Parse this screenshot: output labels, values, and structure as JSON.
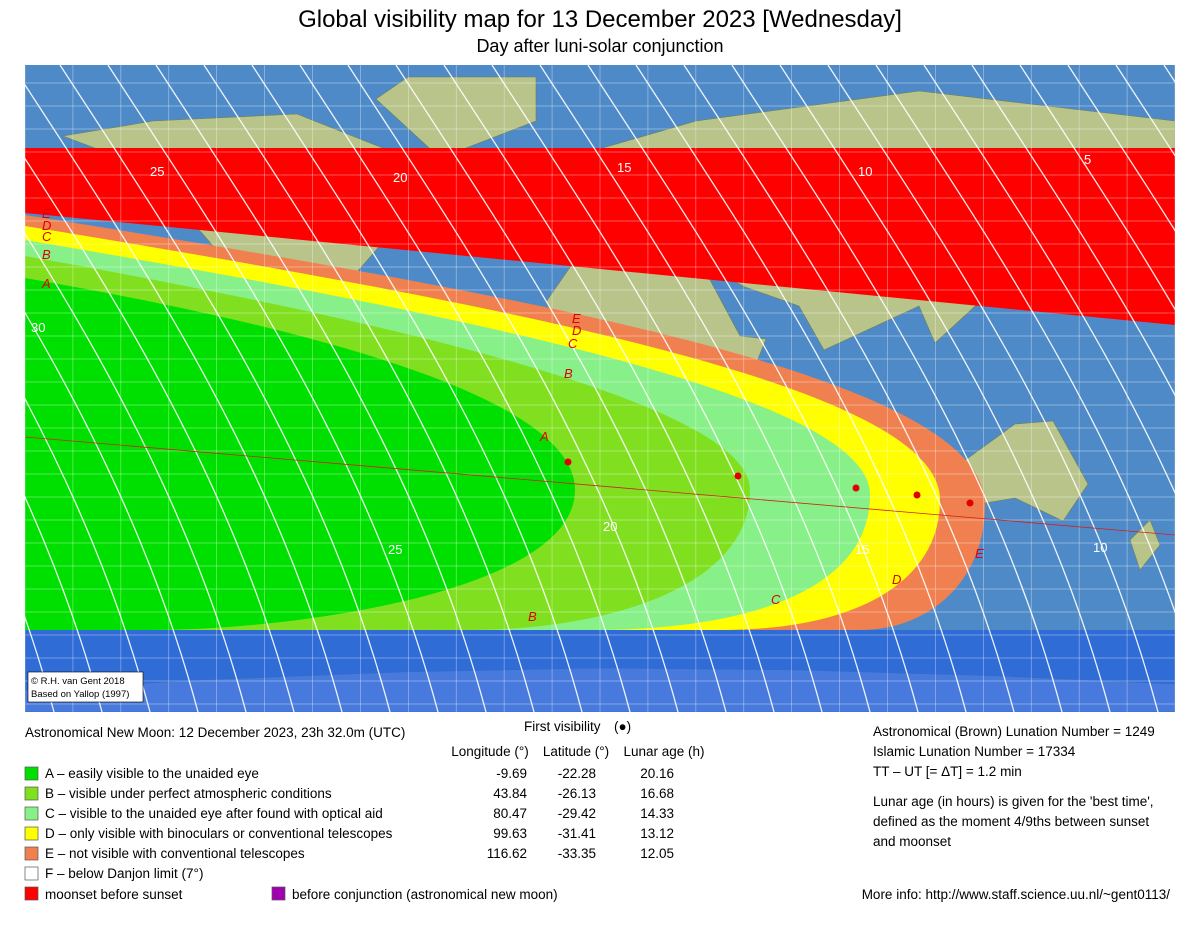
{
  "header": {
    "title": "Global visibility map for 13 December 2023 [Wednesday]",
    "subtitle": "Day after luni-solar conjunction"
  },
  "map": {
    "credit": [
      "© R.H. van Gent 2018",
      "Based on Yallop (1997)"
    ],
    "zone_labels": {
      "left": [
        "E",
        "D",
        "C",
        "B",
        "A"
      ],
      "middle": [
        "E",
        "D",
        "C",
        "B",
        "A"
      ],
      "bottom": [
        "B",
        "C",
        "D",
        "E"
      ]
    },
    "contour_labels": {
      "top": [
        25,
        20,
        15,
        10,
        5
      ],
      "bottom": [
        30,
        25,
        20,
        15,
        10
      ]
    }
  },
  "legend": {
    "new_moon": "Astronomical New Moon: 12 December 2023, 23h 32.0m (UTC)",
    "first_visibility": "First visibility",
    "first_visibility_marker": "(●)",
    "columns": [
      "Longitude (°)",
      "Latitude (°)",
      "Lunar age (h)"
    ],
    "rows": [
      {
        "key": "A – easily visible to the unaided eye",
        "color": "#00e000",
        "cells": [
          -9.69,
          -22.28,
          20.16
        ]
      },
      {
        "key": "B – visible under perfect atmospheric conditions",
        "color": "#80e020",
        "cells": [
          43.84,
          -26.13,
          16.68
        ]
      },
      {
        "key": "C – visible to the unaided eye after found with optical aid",
        "color": "#88f088",
        "cells": [
          80.47,
          -29.42,
          14.33
        ]
      },
      {
        "key": "D – only visible with binoculars or conventional telescopes",
        "color": "#ffff00",
        "cells": [
          99.63,
          -31.41,
          13.12
        ]
      },
      {
        "key": "E – not visible with conventional telescopes",
        "color": "#f08050",
        "cells": [
          116.62,
          -33.35,
          12.05
        ]
      },
      {
        "key": "F – below Danjon limit (7°)",
        "color": "#ffffff",
        "cells": []
      }
    ],
    "moonset": {
      "label": "moonset before sunset",
      "color": "#ff0000"
    },
    "before_conjunction": {
      "label": "before conjunction (astronomical new moon)",
      "color": "#a000b0"
    }
  },
  "info": {
    "lines": [
      "Astronomical (Brown) Lunation Number = 1249",
      "Islamic Lunation Number = 17334",
      "TT – UT [= ΔT] = 1.2 min"
    ],
    "note": [
      "Lunar age (in hours) is given for the 'best time',",
      "defined as the moment 4/9ths between sunset",
      "and moonset"
    ],
    "more_info": "More info: http://www.staff.science.uu.nl/~gent0113/"
  }
}
